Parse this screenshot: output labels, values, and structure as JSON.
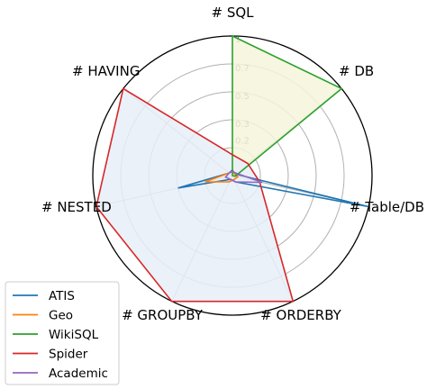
{
  "chart_data": {
    "type": "radar",
    "axes": [
      "# SQL",
      "# DB",
      "# Table/DB",
      "# ORDERBY",
      "# GROUPBY",
      "# NESTED",
      "# HAVING"
    ],
    "radial_ticks": [
      "0.2",
      "0.3",
      "0.5",
      "0.7",
      "1"
    ],
    "rmax": 1,
    "series": [
      {
        "name": "ATIS",
        "color": "#1f77b4",
        "values": [
          0.04,
          0.02,
          1.0,
          0.05,
          0.03,
          0.4,
          0.03
        ],
        "filled": false
      },
      {
        "name": "Geo",
        "color": "#ff7f0e",
        "values": [
          0.03,
          0.02,
          0.04,
          0.03,
          0.05,
          0.2,
          0.03
        ],
        "filled": false
      },
      {
        "name": "WikiSQL",
        "color": "#2ca02c",
        "values": [
          1.0,
          1.0,
          0.02,
          0.0,
          0.0,
          0.0,
          0.0
        ],
        "filled": true,
        "fill": "#f5f4dc"
      },
      {
        "name": "Spider",
        "color": "#d62728",
        "values": [
          0.15,
          0.14,
          0.2,
          1.0,
          1.0,
          1.0,
          1.0
        ],
        "filled": true,
        "fill": "#e7eff8"
      },
      {
        "name": "Academic",
        "color": "#9467bd",
        "values": [
          0.03,
          0.03,
          0.22,
          0.05,
          0.03,
          0.05,
          0.03
        ],
        "filled": false
      }
    ],
    "legend_position": "bottom-left",
    "grid": true
  }
}
